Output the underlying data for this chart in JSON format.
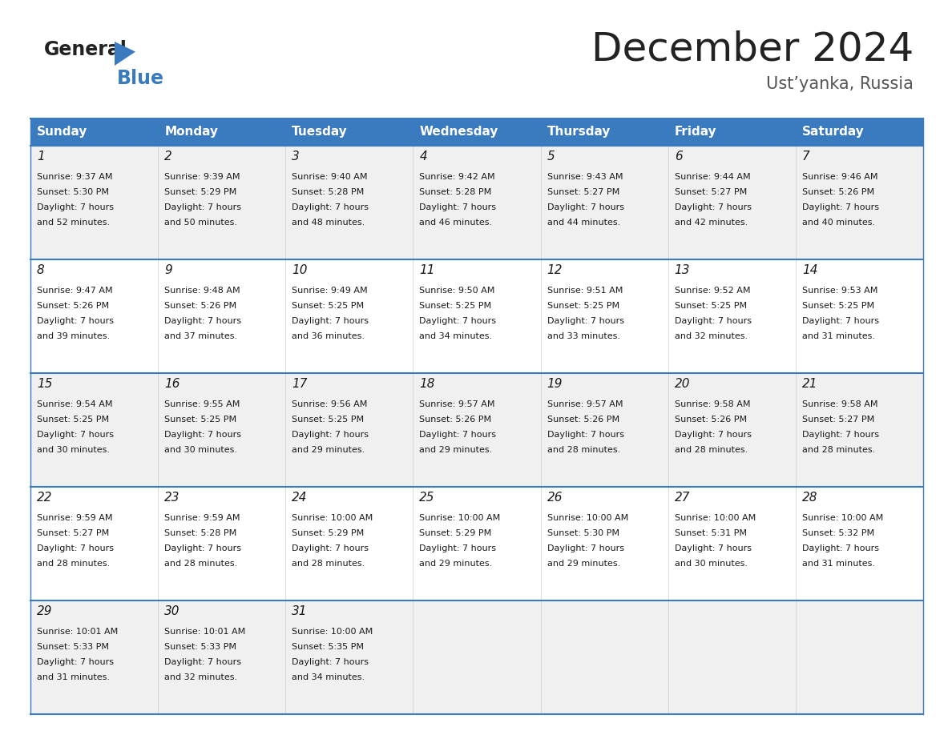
{
  "title": "December 2024",
  "subtitle": "Ust’yanka, Russia",
  "header_color": "#3a7abf",
  "header_text_color": "#ffffff",
  "day_names": [
    "Sunday",
    "Monday",
    "Tuesday",
    "Wednesday",
    "Thursday",
    "Friday",
    "Saturday"
  ],
  "bg_color": "#ffffff",
  "cell_bg_even": "#f0f0f0",
  "cell_bg_odd": "#ffffff",
  "border_color": "#3a7abf",
  "text_color": "#1a1a1a",
  "days": [
    {
      "day": 1,
      "col": 0,
      "row": 0,
      "sunrise": "9:37 AM",
      "sunset": "5:30 PM",
      "daylight": "7 hours and 52 minutes."
    },
    {
      "day": 2,
      "col": 1,
      "row": 0,
      "sunrise": "9:39 AM",
      "sunset": "5:29 PM",
      "daylight": "7 hours and 50 minutes."
    },
    {
      "day": 3,
      "col": 2,
      "row": 0,
      "sunrise": "9:40 AM",
      "sunset": "5:28 PM",
      "daylight": "7 hours and 48 minutes."
    },
    {
      "day": 4,
      "col": 3,
      "row": 0,
      "sunrise": "9:42 AM",
      "sunset": "5:28 PM",
      "daylight": "7 hours and 46 minutes."
    },
    {
      "day": 5,
      "col": 4,
      "row": 0,
      "sunrise": "9:43 AM",
      "sunset": "5:27 PM",
      "daylight": "7 hours and 44 minutes."
    },
    {
      "day": 6,
      "col": 5,
      "row": 0,
      "sunrise": "9:44 AM",
      "sunset": "5:27 PM",
      "daylight": "7 hours and 42 minutes."
    },
    {
      "day": 7,
      "col": 6,
      "row": 0,
      "sunrise": "9:46 AM",
      "sunset": "5:26 PM",
      "daylight": "7 hours and 40 minutes."
    },
    {
      "day": 8,
      "col": 0,
      "row": 1,
      "sunrise": "9:47 AM",
      "sunset": "5:26 PM",
      "daylight": "7 hours and 39 minutes."
    },
    {
      "day": 9,
      "col": 1,
      "row": 1,
      "sunrise": "9:48 AM",
      "sunset": "5:26 PM",
      "daylight": "7 hours and 37 minutes."
    },
    {
      "day": 10,
      "col": 2,
      "row": 1,
      "sunrise": "9:49 AM",
      "sunset": "5:25 PM",
      "daylight": "7 hours and 36 minutes."
    },
    {
      "day": 11,
      "col": 3,
      "row": 1,
      "sunrise": "9:50 AM",
      "sunset": "5:25 PM",
      "daylight": "7 hours and 34 minutes."
    },
    {
      "day": 12,
      "col": 4,
      "row": 1,
      "sunrise": "9:51 AM",
      "sunset": "5:25 PM",
      "daylight": "7 hours and 33 minutes."
    },
    {
      "day": 13,
      "col": 5,
      "row": 1,
      "sunrise": "9:52 AM",
      "sunset": "5:25 PM",
      "daylight": "7 hours and 32 minutes."
    },
    {
      "day": 14,
      "col": 6,
      "row": 1,
      "sunrise": "9:53 AM",
      "sunset": "5:25 PM",
      "daylight": "7 hours and 31 minutes."
    },
    {
      "day": 15,
      "col": 0,
      "row": 2,
      "sunrise": "9:54 AM",
      "sunset": "5:25 PM",
      "daylight": "7 hours and 30 minutes."
    },
    {
      "day": 16,
      "col": 1,
      "row": 2,
      "sunrise": "9:55 AM",
      "sunset": "5:25 PM",
      "daylight": "7 hours and 30 minutes."
    },
    {
      "day": 17,
      "col": 2,
      "row": 2,
      "sunrise": "9:56 AM",
      "sunset": "5:25 PM",
      "daylight": "7 hours and 29 minutes."
    },
    {
      "day": 18,
      "col": 3,
      "row": 2,
      "sunrise": "9:57 AM",
      "sunset": "5:26 PM",
      "daylight": "7 hours and 29 minutes."
    },
    {
      "day": 19,
      "col": 4,
      "row": 2,
      "sunrise": "9:57 AM",
      "sunset": "5:26 PM",
      "daylight": "7 hours and 28 minutes."
    },
    {
      "day": 20,
      "col": 5,
      "row": 2,
      "sunrise": "9:58 AM",
      "sunset": "5:26 PM",
      "daylight": "7 hours and 28 minutes."
    },
    {
      "day": 21,
      "col": 6,
      "row": 2,
      "sunrise": "9:58 AM",
      "sunset": "5:27 PM",
      "daylight": "7 hours and 28 minutes."
    },
    {
      "day": 22,
      "col": 0,
      "row": 3,
      "sunrise": "9:59 AM",
      "sunset": "5:27 PM",
      "daylight": "7 hours and 28 minutes."
    },
    {
      "day": 23,
      "col": 1,
      "row": 3,
      "sunrise": "9:59 AM",
      "sunset": "5:28 PM",
      "daylight": "7 hours and 28 minutes."
    },
    {
      "day": 24,
      "col": 2,
      "row": 3,
      "sunrise": "10:00 AM",
      "sunset": "5:29 PM",
      "daylight": "7 hours and 28 minutes."
    },
    {
      "day": 25,
      "col": 3,
      "row": 3,
      "sunrise": "10:00 AM",
      "sunset": "5:29 PM",
      "daylight": "7 hours and 29 minutes."
    },
    {
      "day": 26,
      "col": 4,
      "row": 3,
      "sunrise": "10:00 AM",
      "sunset": "5:30 PM",
      "daylight": "7 hours and 29 minutes."
    },
    {
      "day": 27,
      "col": 5,
      "row": 3,
      "sunrise": "10:00 AM",
      "sunset": "5:31 PM",
      "daylight": "7 hours and 30 minutes."
    },
    {
      "day": 28,
      "col": 6,
      "row": 3,
      "sunrise": "10:00 AM",
      "sunset": "5:32 PM",
      "daylight": "7 hours and 31 minutes."
    },
    {
      "day": 29,
      "col": 0,
      "row": 4,
      "sunrise": "10:01 AM",
      "sunset": "5:33 PM",
      "daylight": "7 hours and 31 minutes."
    },
    {
      "day": 30,
      "col": 1,
      "row": 4,
      "sunrise": "10:01 AM",
      "sunset": "5:33 PM",
      "daylight": "7 hours and 32 minutes."
    },
    {
      "day": 31,
      "col": 2,
      "row": 4,
      "sunrise": "10:00 AM",
      "sunset": "5:35 PM",
      "daylight": "7 hours and 34 minutes."
    }
  ],
  "logo_general_fontsize": 17,
  "logo_blue_fontsize": 17,
  "title_fontsize": 36,
  "subtitle_fontsize": 15,
  "header_fontsize": 11,
  "day_num_fontsize": 11,
  "cell_text_fontsize": 8
}
